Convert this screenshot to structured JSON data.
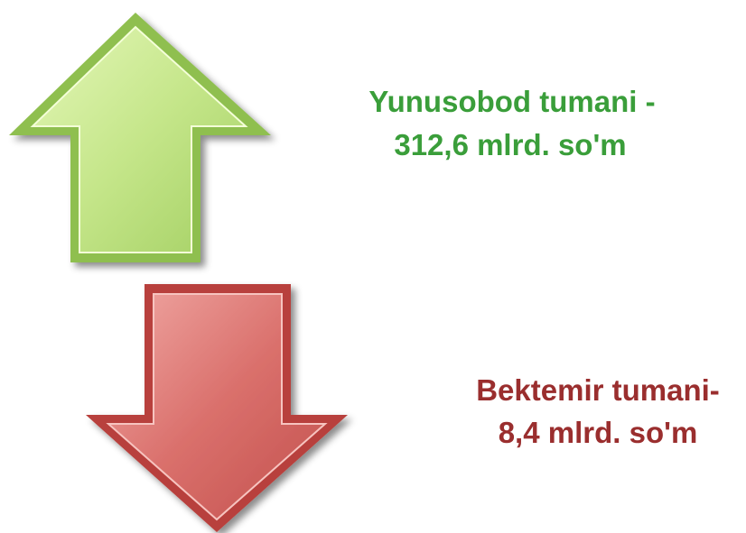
{
  "items": [
    {
      "lines": [
        "Yunusobod tumani -",
        "312,6 mlrd. so'm"
      ]
    },
    {
      "lines": [
        "Bektemir tumani-",
        "8,4 mlrd. so'm"
      ]
    }
  ]
}
